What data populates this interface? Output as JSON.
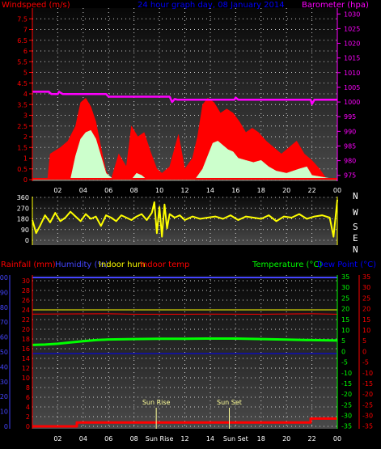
{
  "title": "24 hour graph day, 08 January 2014",
  "colors": {
    "windspeed": "#ff0000",
    "gust_fill": "#ff0000",
    "avg_fill": "#ccffcc",
    "barometer": "#ff00ff",
    "wind_dir": "#ffff00",
    "rainfall": "#ff0000",
    "humidity": "#4444ff",
    "indoor_hum": "#ffff00",
    "indoor_temp": "#ff0000",
    "temperature": "#00ff00",
    "dew_point": "#0000ff",
    "title": "#0000ff"
  },
  "chart_data": [
    {
      "type": "area",
      "name": "wind-barometer",
      "ylabel_left": "Windspeed (m/s)",
      "ylabel_right": "Barometer (hpa)",
      "y_left_ticks": [
        "0",
        "0.5",
        "1",
        "1.5",
        "2",
        "2.5",
        "3",
        "3.5",
        "4",
        "4.5",
        "5",
        "5.5",
        "6",
        "6.5",
        "7",
        "7.5"
      ],
      "y_left_range": [
        0,
        8
      ],
      "y_right_ticks": [
        "975",
        "980",
        "985",
        "990",
        "995",
        "1000",
        "1005",
        "1010",
        "1015",
        "1020",
        "1025",
        "1030"
      ],
      "y_right_range": [
        973,
        1032
      ],
      "x_ticks": [
        "02",
        "04",
        "06",
        "08",
        "10",
        "12",
        "14",
        "16",
        "18",
        "20",
        "22",
        "00"
      ],
      "x_range": [
        0,
        24
      ],
      "series": [
        {
          "name": "Barometer",
          "x": [
            0,
            1.3,
            1.5,
            2,
            2.1,
            2.4,
            2.6,
            3,
            5.8,
            6,
            8,
            10.8,
            11,
            11.2,
            11.4,
            12,
            14,
            15.9,
            16,
            16.2,
            18,
            21.9,
            22,
            22.2,
            24
          ],
          "values": [
            1003.5,
            1003.5,
            1002.7,
            1002.7,
            1003.5,
            1002.7,
            1002.7,
            1002.7,
            1002.7,
            1001.8,
            1001.8,
            1001.8,
            1000.0,
            1001.0,
            1000.8,
            1000.8,
            1000.8,
            1000.8,
            1001.5,
            1000.8,
            1000.8,
            1000.8,
            999.3,
            1000.8,
            1000.8
          ]
        },
        {
          "name": "Gust",
          "x": [
            0,
            1.2,
            1.4,
            2.2,
            2.8,
            3.4,
            3.8,
            4.2,
            4.6,
            5.0,
            5.4,
            5.8,
            6.2,
            6.8,
            7.4,
            7.8,
            8.3,
            8.8,
            9.3,
            9.8,
            10.2,
            10.8,
            11.5,
            12.0,
            12.6,
            13.0,
            13.4,
            13.8,
            14.3,
            14.8,
            15.3,
            15.8,
            16.3,
            16.8,
            17.3,
            17.8,
            18.4,
            19.0,
            19.6,
            20.2,
            20.8,
            21.4,
            22.0,
            22.6,
            23.2,
            24
          ],
          "values": [
            0,
            0,
            1.2,
            1.5,
            1.8,
            2.5,
            3.6,
            3.8,
            3.4,
            2.7,
            1.5,
            0.4,
            0,
            1.2,
            0.6,
            2.5,
            2.0,
            2.2,
            1.3,
            0.5,
            0.3,
            0.6,
            2.1,
            0.5,
            1.0,
            2.0,
            3.5,
            3.8,
            3.6,
            3.1,
            3.3,
            3.1,
            2.7,
            2.2,
            2.4,
            2.2,
            1.8,
            1.5,
            1.2,
            1.5,
            1.8,
            1.2,
            0.9,
            0.5,
            0,
            0
          ]
        },
        {
          "name": "Average",
          "x": [
            0,
            3.0,
            3.4,
            3.8,
            4.2,
            4.6,
            5.0,
            5.4,
            5.8,
            6.4,
            7.8,
            8.2,
            8.6,
            9.0,
            12.8,
            13.4,
            13.8,
            14.2,
            14.6,
            15.0,
            15.4,
            15.8,
            16.2,
            16.8,
            17.4,
            18.0,
            18.6,
            19.2,
            20.0,
            21.0,
            21.6,
            22.0,
            24
          ],
          "values": [
            0,
            0,
            1.1,
            1.9,
            2.2,
            2.3,
            1.9,
            1.1,
            0.3,
            0,
            0,
            0.3,
            0.2,
            0,
            0,
            0.5,
            1.1,
            1.7,
            1.8,
            1.6,
            1.4,
            1.3,
            1.0,
            0.9,
            0.8,
            0.9,
            0.6,
            0.4,
            0.3,
            0.5,
            0.6,
            0.2,
            0
          ]
        }
      ]
    },
    {
      "type": "line",
      "name": "wind-direction",
      "y_ticks": [
        "0",
        "90",
        "180",
        "270",
        "360"
      ],
      "y_range": [
        0,
        360
      ],
      "compass": [
        "N",
        "W",
        "S",
        "E",
        "N"
      ],
      "series": [
        {
          "name": "Wind direction",
          "x": [
            0,
            0.3,
            0.6,
            1.0,
            1.4,
            1.8,
            2.2,
            2.6,
            3.0,
            3.4,
            3.8,
            4.2,
            4.6,
            5.0,
            5.4,
            5.8,
            6.2,
            6.6,
            7.0,
            7.4,
            7.8,
            8.2,
            8.6,
            9.0,
            9.4,
            9.6,
            9.8,
            10.0,
            10.2,
            10.4,
            10.6,
            10.8,
            11.2,
            11.6,
            12.0,
            12.6,
            13.2,
            13.8,
            14.4,
            15.0,
            15.6,
            16.2,
            16.8,
            17.4,
            18.0,
            18.6,
            19.2,
            19.8,
            20.4,
            21.0,
            21.6,
            22.2,
            22.8,
            23.4,
            23.7,
            24
          ],
          "values": [
            170,
            60,
            120,
            210,
            150,
            230,
            160,
            190,
            240,
            200,
            160,
            220,
            180,
            200,
            120,
            210,
            190,
            160,
            210,
            190,
            170,
            200,
            220,
            170,
            230,
            320,
            60,
            280,
            30,
            300,
            100,
            220,
            190,
            210,
            170,
            200,
            180,
            190,
            200,
            180,
            210,
            170,
            200,
            190,
            180,
            210,
            160,
            200,
            190,
            220,
            180,
            200,
            210,
            190,
            30,
            340
          ]
        }
      ]
    },
    {
      "type": "line",
      "name": "temperature-humidity",
      "labels": {
        "rainfall": "Rainfall (mm)",
        "humidity": "Humidity (%)",
        "indoor_hum": "Indoor hum",
        "indoor_temp": "Indoor temp",
        "temperature": "Temperature (°C)",
        "dew_point": "Dew Point (°C)"
      },
      "y_hum_ticks": [
        "0",
        "10",
        "20",
        "30",
        "40",
        "50",
        "60",
        "70",
        "80",
        "90",
        "100"
      ],
      "y_hum_range": [
        0,
        100
      ],
      "y_rain_ticks": [
        "0",
        "2",
        "4",
        "6",
        "8",
        "10",
        "12",
        "14",
        "16",
        "18",
        "20",
        "22",
        "24",
        "26",
        "28",
        "30"
      ],
      "y_rain_range": [
        0,
        31
      ],
      "y_temp_ticks": [
        "-35",
        "-30",
        "-25",
        "-20",
        "-15",
        "-10",
        "-5",
        "0",
        "5",
        "10",
        "15",
        "20",
        "25",
        "30",
        "35"
      ],
      "y_temp_range": [
        -37,
        35
      ],
      "y_indoor_ticks": [
        "-35",
        "-30",
        "-25",
        "-20",
        "-15",
        "-10",
        "-5",
        "0",
        "5",
        "10",
        "15",
        "20",
        "25",
        "30",
        "35"
      ],
      "x_ticks": [
        "02",
        "04",
        "06",
        "08",
        "Sun Rise",
        "12",
        "14",
        "Sun Set",
        "18",
        "20",
        "22",
        "00"
      ],
      "annotations": [
        {
          "text": "Sun Rise",
          "x": 9.75
        },
        {
          "text": "Sun Set",
          "x": 15.5
        }
      ],
      "series": [
        {
          "name": "Humidity",
          "x": [
            0,
            24
          ],
          "values": [
            100,
            100
          ]
        },
        {
          "name": "Indoor temp",
          "x": [
            0,
            6,
            8,
            12,
            14,
            18,
            22,
            24
          ],
          "values": [
            17.5,
            17.6,
            17.4,
            17.4,
            17.5,
            17.4,
            17.6,
            17.4
          ]
        },
        {
          "name": "Indoor hum",
          "x": [
            0,
            24
          ],
          "values": [
            24,
            24
          ]
        },
        {
          "name": "Dew Point",
          "x": [
            0,
            24
          ],
          "values": [
            -1,
            -1
          ]
        },
        {
          "name": "Temperature",
          "x": [
            0,
            1,
            2,
            3,
            4,
            5,
            6,
            8,
            10,
            12,
            14,
            16,
            18,
            20,
            22,
            24
          ],
          "values": [
            3.0,
            3.2,
            3.6,
            4.2,
            4.8,
            5.3,
            5.6,
            5.8,
            5.9,
            5.9,
            6.0,
            6.0,
            5.8,
            5.5,
            5.3,
            5.1
          ]
        },
        {
          "name": "Rainfall",
          "x": [
            0,
            3.5,
            3.5,
            21.9,
            21.9,
            24
          ],
          "values": [
            0,
            0,
            0.8,
            0.8,
            1.6,
            1.6
          ]
        }
      ]
    }
  ]
}
